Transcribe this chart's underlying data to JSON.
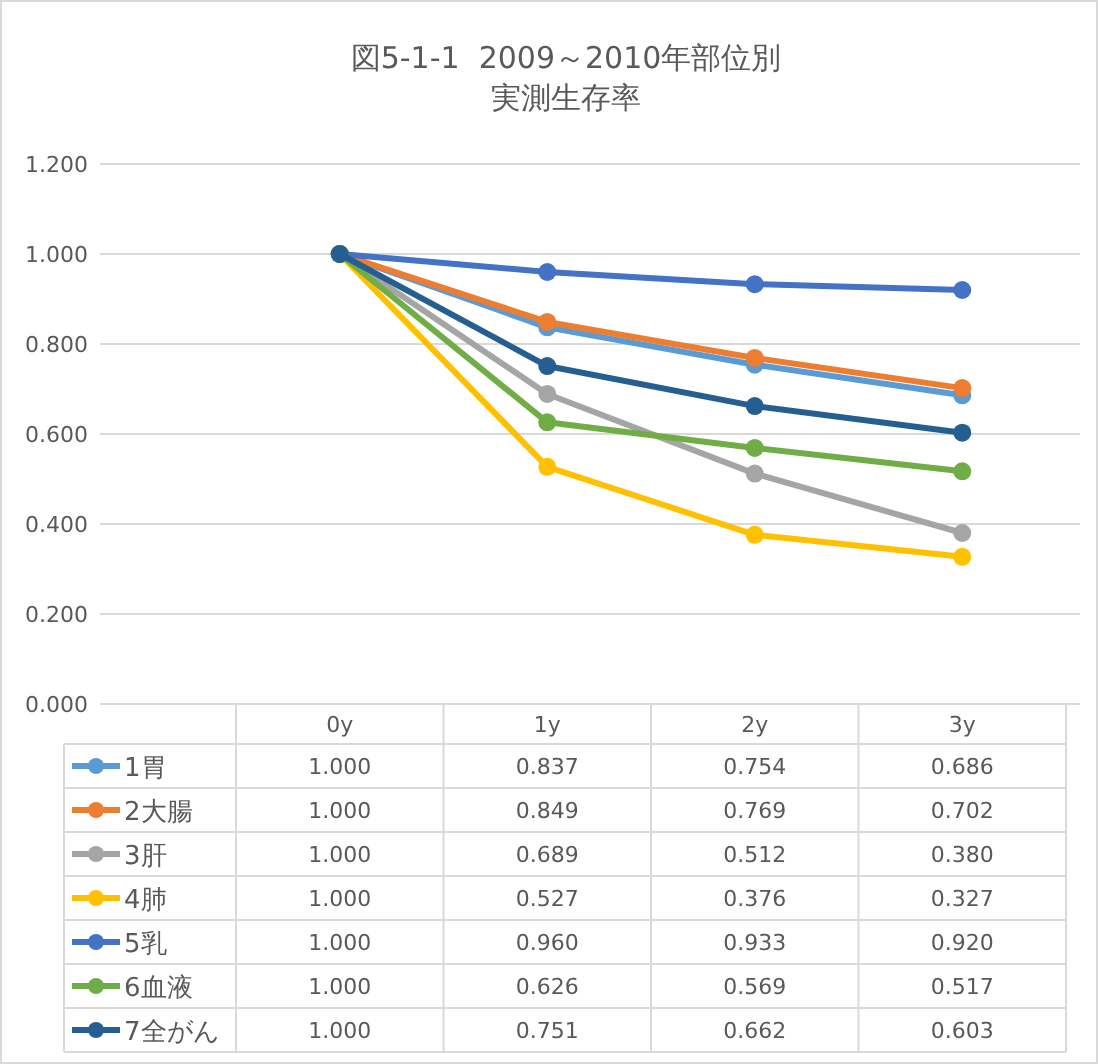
{
  "chart_data": {
    "type": "line",
    "title": "図5-1-1  2009～2010年部位別実測生存率",
    "categories": [
      "0y",
      "1y",
      "2y",
      "3y"
    ],
    "series": [
      {
        "name": "1胃",
        "color": "#5b9bd5",
        "values": [
          1.0,
          0.837,
          0.754,
          0.686
        ],
        "value_labels": [
          "1.000",
          "0.837",
          "0.754",
          "0.686"
        ]
      },
      {
        "name": "2大腸",
        "color": "#ed7d31",
        "values": [
          1.0,
          0.849,
          0.769,
          0.702
        ],
        "value_labels": [
          "1.000",
          "0.849",
          "0.769",
          "0.702"
        ]
      },
      {
        "name": "3肝",
        "color": "#a5a5a5",
        "values": [
          1.0,
          0.689,
          0.512,
          0.38
        ],
        "value_labels": [
          "1.000",
          "0.689",
          "0.512",
          "0.380"
        ]
      },
      {
        "name": "4肺",
        "color": "#ffc000",
        "values": [
          1.0,
          0.527,
          0.376,
          0.327
        ],
        "value_labels": [
          "1.000",
          "0.527",
          "0.376",
          "0.327"
        ]
      },
      {
        "name": "5乳",
        "color": "#4472c4",
        "values": [
          1.0,
          0.96,
          0.933,
          0.92
        ],
        "value_labels": [
          "1.000",
          "0.960",
          "0.933",
          "0.920"
        ]
      },
      {
        "name": "6血液",
        "color": "#70ad47",
        "values": [
          1.0,
          0.626,
          0.569,
          0.517
        ],
        "value_labels": [
          "1.000",
          "0.626",
          "0.569",
          "0.517"
        ]
      },
      {
        "name": "7全がん",
        "color": "#255e91",
        "values": [
          1.0,
          0.751,
          0.662,
          0.603
        ],
        "value_labels": [
          "1.000",
          "0.751",
          "0.662",
          "0.603"
        ]
      }
    ],
    "ylim": [
      0,
      1.2
    ],
    "yticks": [
      {
        "value": 0,
        "label": "0.000"
      },
      {
        "value": 0.2,
        "label": "0.200"
      },
      {
        "value": 0.4,
        "label": "0.400"
      },
      {
        "value": 0.6,
        "label": "0.600"
      },
      {
        "value": 0.8,
        "label": "0.800"
      },
      {
        "value": 1.0,
        "label": "1.000"
      },
      {
        "value": 1.2,
        "label": "1.200"
      }
    ],
    "grid": "y",
    "marker": "circle",
    "line_style": "solid",
    "legend": "bottom"
  }
}
